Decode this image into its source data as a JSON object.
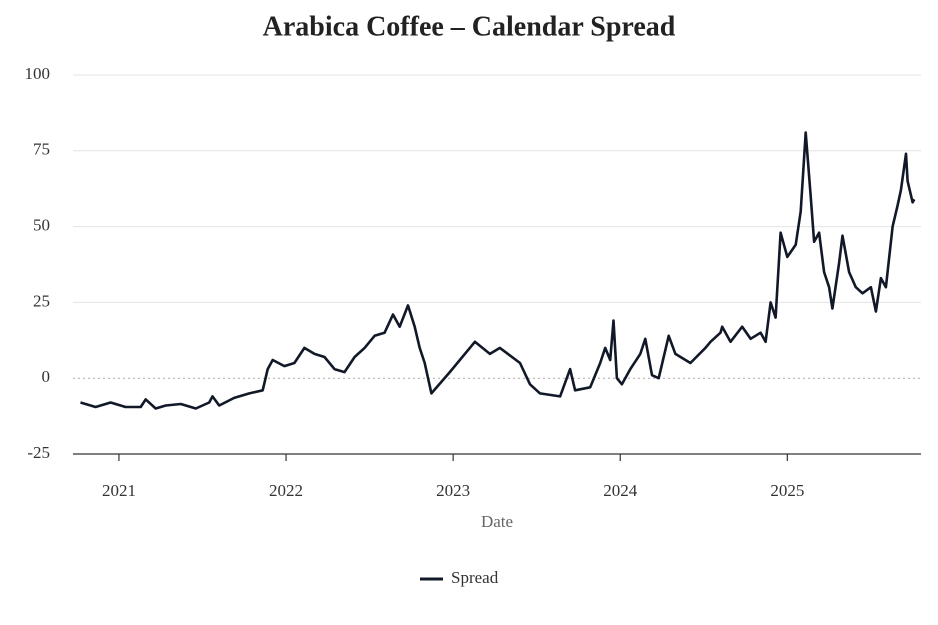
{
  "chart_data": {
    "type": "line",
    "title": "Arabica Coffee – Calendar Spread",
    "x_label": "Date",
    "x": [
      2020.77,
      2020.86,
      2020.95,
      2021.04,
      2021.13,
      2021.16,
      2021.22,
      2021.28,
      2021.37,
      2021.46,
      2021.54,
      2021.56,
      2021.6,
      2021.69,
      2021.78,
      2021.86,
      2021.89,
      2021.92,
      2021.99,
      2022.05,
      2022.11,
      2022.17,
      2022.23,
      2022.29,
      2022.35,
      2022.41,
      2022.47,
      2022.53,
      2022.59,
      2022.64,
      2022.68,
      2022.73,
      2022.77,
      2022.8,
      2022.83,
      2022.87,
      2022.98,
      2023.13,
      2023.22,
      2023.28,
      2023.4,
      2023.46,
      2023.52,
      2023.64,
      2023.7,
      2023.73,
      2023.82,
      2023.88,
      2023.91,
      2023.94,
      2023.96,
      2023.98,
      2024.01,
      2024.06,
      2024.12,
      2024.15,
      2024.19,
      2024.23,
      2024.29,
      2024.33,
      2024.42,
      2024.51,
      2024.54,
      2024.6,
      2024.61,
      2024.66,
      2024.73,
      2024.78,
      2024.84,
      2024.87,
      2024.9,
      2024.93,
      2024.96,
      2025.0,
      2025.05,
      2025.08,
      2025.11,
      2025.14,
      2025.16,
      2025.19,
      2025.22,
      2025.25,
      2025.27,
      2025.31,
      2025.33,
      2025.37,
      2025.41,
      2025.45,
      2025.5,
      2025.53,
      2025.56,
      2025.59,
      2025.63,
      2025.66,
      2025.68,
      2025.71,
      2025.72,
      2025.75,
      2025.76
    ],
    "series": [
      {
        "name": "Spread",
        "color": "#111827",
        "values": [
          -8,
          -9.5,
          -8,
          -9.5,
          -9.5,
          -7,
          -10,
          -9,
          -8.5,
          -10,
          -8,
          -6,
          -9,
          -6.5,
          -5,
          -4,
          3,
          6,
          4,
          5,
          10,
          8,
          7,
          3,
          2,
          7,
          10,
          14,
          15,
          21,
          17,
          24,
          17,
          10,
          5,
          -5,
          2,
          12,
          8,
          10,
          5,
          -2,
          -5,
          -6,
          3,
          -4,
          -3,
          5,
          10,
          6,
          19,
          0,
          -2,
          3,
          8,
          13,
          1,
          0,
          14,
          8,
          5,
          10,
          12,
          15,
          17,
          12,
          17,
          13,
          15,
          12,
          25,
          20,
          48,
          40,
          44,
          55,
          81,
          60,
          45,
          48,
          35,
          30,
          23,
          38,
          47,
          35,
          30,
          28,
          30,
          22,
          33,
          30,
          50,
          57,
          62,
          74,
          65,
          58,
          59
        ]
      }
    ],
    "xlim": [
      2020.725,
      2025.8
    ],
    "xticks": [
      2021,
      2022,
      2023,
      2024,
      2025
    ],
    "ylim": [
      -25,
      100
    ],
    "yticks": [
      -25,
      0,
      25,
      50,
      75,
      100
    ],
    "grid": true,
    "legend": "bottom"
  }
}
